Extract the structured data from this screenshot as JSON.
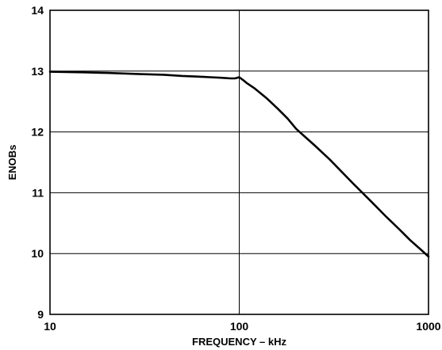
{
  "chart_data": {
    "type": "line",
    "xlabel": "FREQUENCY – kHz",
    "ylabel": "ENOBs",
    "x_scale": "log",
    "xlim": [
      10,
      1000
    ],
    "ylim": [
      9,
      14
    ],
    "x_ticks": [
      10,
      100,
      1000
    ],
    "x_tick_labels": [
      "10",
      "100",
      "1000"
    ],
    "y_ticks": [
      9,
      10,
      11,
      12,
      13,
      14
    ],
    "y_tick_labels": [
      "9",
      "10",
      "11",
      "12",
      "13",
      "14"
    ],
    "grid": true,
    "line_color": "#000000",
    "series": [
      {
        "x": [
          10,
          15,
          20,
          30,
          40,
          50,
          60,
          70,
          80,
          90,
          95,
          100,
          105,
          110,
          120,
          140,
          160,
          180,
          200,
          250,
          300,
          400,
          500,
          600,
          700,
          800,
          900,
          1000
        ],
        "y": [
          12.99,
          12.98,
          12.97,
          12.95,
          12.94,
          12.92,
          12.91,
          12.9,
          12.89,
          12.88,
          12.88,
          12.9,
          12.85,
          12.8,
          12.72,
          12.55,
          12.38,
          12.22,
          12.05,
          11.78,
          11.55,
          11.15,
          10.85,
          10.6,
          10.4,
          10.22,
          10.08,
          9.95
        ]
      }
    ]
  }
}
